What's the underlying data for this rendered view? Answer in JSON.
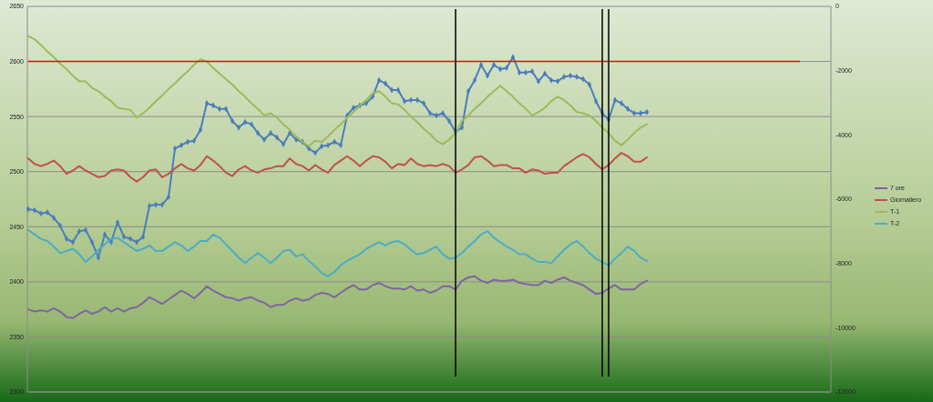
{
  "chart_data": {
    "type": "line",
    "categories": [
      null,
      null,
      null,
      null,
      null,
      null,
      null,
      null,
      null,
      null,
      null,
      null,
      null,
      null,
      null,
      null,
      null,
      null,
      null,
      null,
      null,
      null,
      null,
      null,
      null,
      null,
      null,
      null,
      null,
      null,
      null,
      null,
      null,
      null,
      null,
      null,
      null,
      null,
      null,
      null,
      null,
      null,
      null,
      null,
      null,
      null,
      null,
      null,
      null,
      null,
      null,
      null,
      null,
      null,
      null,
      null,
      null,
      null,
      null,
      null,
      null,
      null,
      null,
      null,
      null,
      null,
      null,
      null,
      null,
      null,
      null,
      null,
      null,
      null,
      null,
      null,
      null,
      null,
      null,
      null,
      null,
      null,
      null,
      null,
      null,
      null,
      null,
      null,
      null,
      null,
      null,
      null,
      null,
      null,
      null,
      null,
      null,
      null,
      null,
      null,
      null,
      null,
      null,
      null,
      null,
      null,
      null,
      null,
      null,
      null,
      null,
      null,
      null,
      null,
      null,
      null,
      null,
      null,
      null,
      null,
      null,
      null
    ],
    "series": [
      {
        "color": "#4a7ebb",
        "marker": "diamond",
        "values": [
          2466,
          2465,
          2462,
          2463,
          2458,
          2451,
          2439,
          2436,
          2446,
          2447,
          2436,
          2422,
          2443,
          2436,
          2454,
          2441,
          2439,
          2436,
          2441,
          2469,
          2470,
          2470,
          2477,
          2521,
          2524,
          2527,
          2528,
          2538,
          2562,
          2560,
          2557,
          2557,
          2546,
          2540,
          2545,
          2543,
          2535,
          2529,
          2535,
          2531,
          2525,
          2535,
          2529,
          2527,
          2521,
          2517,
          2523,
          2524,
          2527,
          2524,
          2551,
          2558,
          2560,
          2562,
          2568,
          2583,
          2580,
          2574,
          2574,
          2564,
          2565,
          2565,
          2562,
          2553,
          2551,
          2553,
          2546,
          2536,
          2540,
          2573,
          2583,
          2597,
          2587,
          2597,
          2593,
          2594,
          2604,
          2590,
          2590,
          2591,
          2582,
          2589,
          2583,
          2582,
          2586,
          2587,
          2586,
          2584,
          2579,
          2564,
          2553,
          2547,
          2565,
          2562,
          2557,
          2553,
          2553,
          2554,
          null,
          null,
          null,
          null,
          null,
          null,
          null,
          null,
          null,
          null,
          null,
          null,
          null,
          null,
          null,
          null,
          null,
          null,
          null,
          null,
          null,
          null,
          null,
          null
        ]
      },
      {
        "name": "7 ore",
        "color": "#8064a2",
        "values": [
          2375,
          2373,
          2374,
          2373,
          2376,
          2373,
          2368,
          2367,
          2371,
          2374,
          2371,
          2373,
          2377,
          2373,
          2376,
          2373,
          2376,
          2377,
          2381,
          2386,
          2383,
          2380,
          2384,
          2388,
          2392,
          2389,
          2385,
          2390,
          2396,
          2392,
          2389,
          2386,
          2385,
          2383,
          2385,
          2386,
          2383,
          2381,
          2377,
          2379,
          2379,
          2383,
          2385,
          2383,
          2384,
          2388,
          2390,
          2389,
          2386,
          2390,
          2394,
          2397,
          2393,
          2393,
          2397,
          2399,
          2396,
          2394,
          2394,
          2393,
          2396,
          2392,
          2393,
          2390,
          2392,
          2396,
          2396,
          2393,
          2401,
          2404,
          2405,
          2401,
          2399,
          2402,
          2401,
          2401,
          2402,
          2399,
          2398,
          2397,
          2397,
          2401,
          2399,
          2402,
          2404,
          2401,
          2399,
          2397,
          2393,
          2389,
          2390,
          2394,
          2397,
          2393,
          2393,
          2393,
          2398,
          2401,
          null,
          null,
          null,
          null,
          null,
          null,
          null,
          null,
          null,
          null,
          null,
          null,
          null,
          null,
          null,
          null,
          null,
          null,
          null,
          null,
          null,
          null,
          null,
          null
        ]
      },
      {
        "name": "Giornaliero",
        "color": "#c0504d",
        "values": [
          2512,
          2507,
          2505,
          2507,
          2510,
          2505,
          2498,
          2501,
          2505,
          2501,
          2498,
          2495,
          2496,
          2501,
          2502,
          2501,
          2495,
          2491,
          2495,
          2501,
          2502,
          2495,
          2498,
          2503,
          2507,
          2503,
          2501,
          2506,
          2514,
          2510,
          2505,
          2499,
          2496,
          2502,
          2505,
          2501,
          2499,
          2502,
          2503,
          2505,
          2505,
          2512,
          2507,
          2505,
          2501,
          2506,
          2502,
          2499,
          2506,
          2510,
          2514,
          2510,
          2505,
          2510,
          2514,
          2513,
          2509,
          2503,
          2507,
          2506,
          2512,
          2507,
          2505,
          2506,
          2505,
          2507,
          2505,
          2499,
          2502,
          2506,
          2513,
          2514,
          2510,
          2505,
          2506,
          2506,
          2503,
          2503,
          2499,
          2502,
          2501,
          2498,
          2499,
          2499,
          2505,
          2509,
          2513,
          2516,
          2513,
          2507,
          2502,
          2506,
          2512,
          2517,
          2514,
          2509,
          2509,
          2513,
          null,
          null,
          null,
          null,
          null,
          null,
          null,
          null,
          null,
          null,
          null,
          null,
          null,
          null,
          null,
          null,
          null,
          null,
          null,
          null,
          null,
          null,
          null,
          null
        ]
      },
      {
        "name": "T-1",
        "color": "#9bbb59",
        "values": [
          2623,
          2620,
          2615,
          2609,
          2604,
          2598,
          2593,
          2587,
          2582,
          2582,
          2576,
          2573,
          2568,
          2564,
          2558,
          2557,
          2556,
          2549,
          2553,
          2558,
          2564,
          2569,
          2575,
          2580,
          2586,
          2591,
          2597,
          2602,
          2600,
          2594,
          2589,
          2584,
          2579,
          2573,
          2568,
          2562,
          2557,
          2551,
          2553,
          2549,
          2543,
          2538,
          2532,
          2527,
          2523,
          2528,
          2527,
          2532,
          2538,
          2543,
          2549,
          2554,
          2560,
          2565,
          2571,
          2573,
          2568,
          2562,
          2561,
          2556,
          2550,
          2545,
          2539,
          2534,
          2528,
          2525,
          2529,
          2535,
          2546,
          2551,
          2557,
          2562,
          2568,
          2573,
          2578,
          2573,
          2568,
          2562,
          2557,
          2551,
          2554,
          2558,
          2564,
          2568,
          2565,
          2560,
          2554,
          2553,
          2551,
          2546,
          2540,
          2535,
          2528,
          2524,
          2529,
          2535,
          2540,
          2543,
          null,
          null,
          null,
          null,
          null,
          null,
          null,
          null,
          null,
          null,
          null,
          null,
          null,
          null,
          null,
          null,
          null,
          null,
          null,
          null,
          null,
          null,
          null,
          null
        ]
      },
      {
        "name": "T-2",
        "color": "#4bacc6",
        "values": [
          2447,
          2443,
          2439,
          2437,
          2432,
          2426,
          2428,
          2430,
          2425,
          2418,
          2423,
          2429,
          2434,
          2439,
          2440,
          2436,
          2432,
          2428,
          2430,
          2433,
          2428,
          2428,
          2432,
          2436,
          2433,
          2428,
          2432,
          2437,
          2437,
          2443,
          2440,
          2434,
          2428,
          2422,
          2417,
          2422,
          2426,
          2422,
          2417,
          2422,
          2428,
          2429,
          2423,
          2425,
          2419,
          2414,
          2408,
          2405,
          2409,
          2415,
          2419,
          2422,
          2425,
          2430,
          2433,
          2436,
          2433,
          2436,
          2437,
          2434,
          2429,
          2425,
          2426,
          2429,
          2432,
          2425,
          2421,
          2422,
          2426,
          2432,
          2437,
          2443,
          2446,
          2440,
          2436,
          2432,
          2429,
          2425,
          2425,
          2421,
          2418,
          2418,
          2417,
          2423,
          2429,
          2434,
          2437,
          2432,
          2426,
          2421,
          2418,
          2415,
          2421,
          2426,
          2432,
          2428,
          2422,
          2419,
          null,
          null,
          null,
          null,
          null,
          null,
          null,
          null,
          null,
          null,
          null,
          null,
          null,
          null,
          null,
          null,
          null,
          null,
          null,
          null,
          null,
          null,
          null,
          null
        ]
      }
    ],
    "ylim": [
      2300,
      2650
    ],
    "yticks": [
      2300,
      2350,
      2400,
      2450,
      2500,
      2550,
      2600,
      2650
    ],
    "y2lim": [
      -12000,
      0
    ],
    "y2ticks": [
      -12000,
      -10000,
      -8000,
      -6000,
      -4000,
      -2000,
      0
    ],
    "ref_lines": [
      {
        "axis": "y",
        "value": 2600,
        "color": "#ff0000"
      }
    ],
    "grid": "y",
    "legend": "right",
    "tick_labels": "y"
  }
}
